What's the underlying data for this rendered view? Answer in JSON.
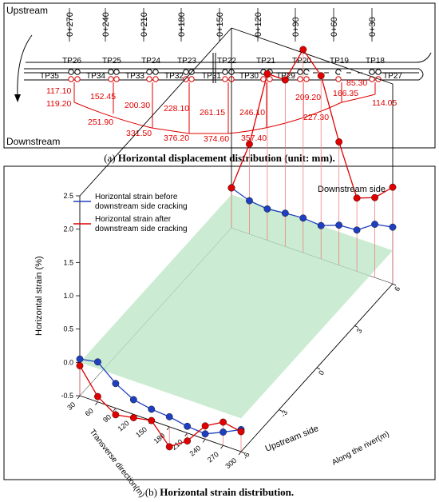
{
  "panel_a": {
    "caption_prefix": "(a) ",
    "caption_bold": "Horizontal displacement distribution (unit: mm).",
    "upstream": "Upstream",
    "downstream": "Downstream",
    "stations": [
      "0+270",
      "0+240",
      "0+210",
      "0+180",
      "0+150",
      "0+120",
      "0+90",
      "0+60",
      "0+30"
    ],
    "top_points": [
      "TP26",
      "TP25",
      "TP24",
      "TP23",
      "TP22",
      "TP21",
      "TP20",
      "TP19",
      "TP18"
    ],
    "bottom_points": [
      "TP35",
      "TP34",
      "TP33",
      "TP32",
      "TP31",
      "TP30",
      "TP29",
      "TP27"
    ],
    "displacements": [
      "117.10",
      "119.20",
      "152.45",
      "251.90",
      "200.30",
      "331.50",
      "228.10",
      "376.20",
      "261.15",
      "374.60",
      "246.10",
      "357.40",
      "209.20",
      "227.30",
      "166.35",
      "85.30",
      "114.05"
    ]
  },
  "panel_b": {
    "caption_prefix": "(b) ",
    "caption_bold": "Horizontal strain distribution.",
    "downstream_side": "Downstream side",
    "upstream_side": "Upstream side",
    "legend": [
      {
        "line1": "Horizontal strain before",
        "line2": "downstream side cracking",
        "color": "#1f3fbf"
      },
      {
        "line1": "Horizontal strain after",
        "line2": "downstream side cracking",
        "color": "#e00000"
      }
    ],
    "z_ticks": [
      "2.5",
      "2.0",
      "1.5",
      "1.0",
      "0.5",
      "0.0",
      "-0.5"
    ],
    "x_ticks": [
      "30",
      "60",
      "90",
      "120",
      "150",
      "180",
      "210",
      "240",
      "270",
      "300"
    ],
    "y_ticks": [
      "-6",
      "-3",
      "0",
      "3",
      "6"
    ]
  },
  "chart_data": {
    "type": "line",
    "zlabel": "Horizontal strain (%)",
    "xlabel": "Transverse direction(m)",
    "ylabel": "Along the river(m)",
    "zlim": [
      -0.5,
      2.5
    ],
    "xlim": [
      30,
      300
    ],
    "ylim": [
      -6,
      6
    ],
    "legend_position": "top-left",
    "plane_z": 0,
    "series": [
      {
        "name": "Horizontal strain before downstream side cracking",
        "color": "#1f3fbf",
        "points": [
          {
            "x": 30,
            "y": 6,
            "z": 0.1
          },
          {
            "x": 60,
            "y": 6,
            "z": 0.0
          },
          {
            "x": 90,
            "y": 6,
            "z": -0.03
          },
          {
            "x": 120,
            "y": 6,
            "z": 0.0
          },
          {
            "x": 150,
            "y": 6,
            "z": 0.02
          },
          {
            "x": 180,
            "y": 6,
            "z": 0.0
          },
          {
            "x": 210,
            "y": 6,
            "z": 0.1
          },
          {
            "x": 240,
            "y": 6,
            "z": 0.12
          },
          {
            "x": 270,
            "y": 6,
            "z": 0.3
          },
          {
            "x": 300,
            "y": 6,
            "z": 0.35
          },
          {
            "x": 30,
            "y": -6,
            "z": 0.05
          },
          {
            "x": 60,
            "y": -6,
            "z": 0.1
          },
          {
            "x": 90,
            "y": -6,
            "z": -0.13
          },
          {
            "x": 120,
            "y": -6,
            "z": -0.28
          },
          {
            "x": 150,
            "y": -6,
            "z": -0.33
          },
          {
            "x": 180,
            "y": -6,
            "z": -0.35
          },
          {
            "x": 210,
            "y": -6,
            "z": -0.4
          },
          {
            "x": 240,
            "y": -6,
            "z": -0.42
          },
          {
            "x": 270,
            "y": -6,
            "z": -0.3
          },
          {
            "x": 300,
            "y": -6,
            "z": -0.17
          }
        ]
      },
      {
        "name": "Horizontal strain after downstream side cracking",
        "color": "#e00000",
        "points": [
          {
            "x": 30,
            "y": 6,
            "z": 0.1
          },
          {
            "x": 60,
            "y": 6,
            "z": 0.85
          },
          {
            "x": 90,
            "y": 6,
            "z": 2.0
          },
          {
            "x": 120,
            "y": 6,
            "z": 2.0
          },
          {
            "x": 150,
            "y": 6,
            "z": 2.55
          },
          {
            "x": 180,
            "y": 6,
            "z": 2.25
          },
          {
            "x": 210,
            "y": 6,
            "z": 1.35
          },
          {
            "x": 240,
            "y": 6,
            "z": 0.6
          },
          {
            "x": 270,
            "y": 6,
            "z": 0.7
          },
          {
            "x": 300,
            "y": 6,
            "z": 0.95
          },
          {
            "x": 30,
            "y": -6,
            "z": -0.05
          },
          {
            "x": 60,
            "y": -6,
            "z": -0.42
          },
          {
            "x": 90,
            "y": -6,
            "z": -0.6
          },
          {
            "x": 120,
            "y": -6,
            "z": -0.55
          },
          {
            "x": 150,
            "y": -6,
            "z": -0.5
          },
          {
            "x": 180,
            "y": -6,
            "z": -0.8
          },
          {
            "x": 210,
            "y": -6,
            "z": -0.62
          },
          {
            "x": 240,
            "y": -6,
            "z": -0.3
          },
          {
            "x": 270,
            "y": -6,
            "z": -0.15
          },
          {
            "x": 300,
            "y": -6,
            "z": -0.2
          }
        ]
      }
    ]
  }
}
